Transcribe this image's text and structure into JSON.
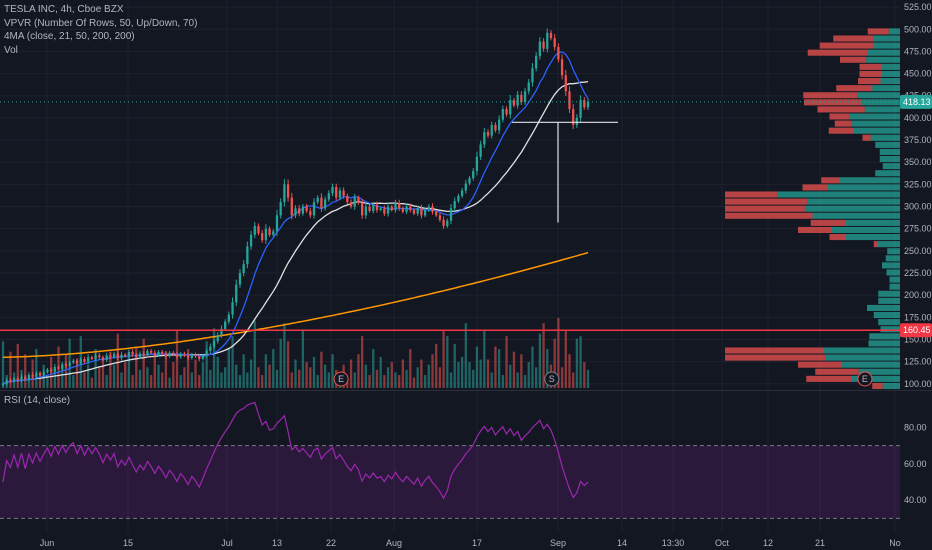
{
  "legend": {
    "symbol": "TESLA INC, 4h, Cboe BZX",
    "vpvr": "VPVR (Number Of Rows, 50, Up/Down, 70)",
    "ma": "4MA (close, 21, 50, 200, 200)",
    "vol": "Vol",
    "rsi": "RSI (14, close)"
  },
  "colors": {
    "background": "#131722",
    "up": "#26a69a",
    "down": "#ef5350",
    "ma21": "#2962ff",
    "ma50": "#e0e0e0",
    "ma200": "#ff9800",
    "rsi": "#9c27b0",
    "hline": "#f23645",
    "last_price": "#26a69a"
  },
  "chart_data": {
    "type": "candlestick",
    "symbol": "TESLA INC",
    "interval": "4h",
    "exchange": "Cboe BZX",
    "price_axis": {
      "ylim": [
        93,
        533
      ],
      "ticks": [
        525,
        500,
        475,
        450,
        425,
        400,
        375,
        350,
        325,
        300,
        275,
        250,
        225,
        200,
        175,
        150,
        125,
        100
      ]
    },
    "time_axis": {
      "labels": [
        "Jun",
        "15",
        "Jul",
        "13",
        "22",
        "Aug",
        "17",
        "Sep",
        "14",
        "13:30",
        "Oct",
        "12",
        "21",
        "No"
      ]
    },
    "last_price": 418.13,
    "horizontal_line": 160.45,
    "series_close": [
      100,
      104,
      103,
      106,
      104,
      108,
      105,
      110,
      108,
      112,
      110,
      113,
      116,
      114,
      119,
      117,
      122,
      120,
      124,
      126,
      123,
      128,
      125,
      130,
      128,
      132,
      130,
      127,
      132,
      130,
      134,
      129,
      133,
      131,
      136,
      133,
      130,
      134,
      132,
      137,
      135,
      132,
      136,
      134,
      131,
      135,
      133,
      130,
      134,
      132,
      129,
      133,
      131,
      128,
      132,
      137,
      142,
      148,
      155,
      162,
      170,
      178,
      192,
      212,
      225,
      235,
      255,
      268,
      278,
      270,
      262,
      275,
      268,
      272,
      290,
      305,
      325,
      310,
      290,
      298,
      292,
      300,
      295,
      290,
      305,
      310,
      298,
      308,
      315,
      322,
      310,
      318,
      312,
      305,
      300,
      310,
      304,
      290,
      300,
      295,
      302,
      296,
      298,
      292,
      300,
      296,
      304,
      298,
      294,
      300,
      296,
      292,
      298,
      290,
      296,
      300,
      294,
      290,
      285,
      278,
      284,
      298,
      306,
      312,
      318,
      326,
      332,
      340,
      356,
      370,
      384,
      380,
      392,
      386,
      398,
      410,
      404,
      420,
      414,
      426,
      418,
      430,
      440,
      456,
      470,
      486,
      478,
      496,
      490,
      480,
      466,
      448,
      430,
      410,
      392,
      400,
      420,
      412,
      418.13
    ],
    "series_volume": [
      1.8,
      0.5,
      1.4,
      0.6,
      1.7,
      0.7,
      1.3,
      0.4,
      1.1,
      1.5,
      0.6,
      0.9,
      0.5,
      1.2,
      0.7,
      1.6,
      0.8,
      1.3,
      1.9,
      0.5,
      1.1,
      2.0,
      0.6,
      0.9,
      0.4,
      1.5,
      0.8,
      1.1,
      0.5,
      1.4,
      0.9,
      2.1,
      0.6,
      1.0,
      1.3,
      0.5,
      1.6,
      0.7,
      1.9,
      0.8,
      0.5,
      1.2,
      0.9,
      0.6,
      1.4,
      0.4,
      1.0,
      2.2,
      0.5,
      0.8,
      1.5,
      0.6,
      1.1,
      0.5,
      1.0,
      1.8,
      0.7,
      2.3,
      1.2,
      0.6,
      0.8,
      1.5,
      2.0,
      0.9,
      0.5,
      1.3,
      0.6,
      1.1,
      2.6,
      0.8,
      0.5,
      1.3,
      0.9,
      1.5,
      0.7,
      1.9,
      2.5,
      1.8,
      0.6,
      1.1,
      0.7,
      2.2,
      1.0,
      0.8,
      1.2,
      0.5,
      1.4,
      0.9,
      0.6,
      1.3,
      0.7,
      0.5,
      0.9,
      0.4,
      1.1,
      0.6,
      1.3,
      2.0,
      0.9,
      0.5,
      1.5,
      0.7,
      1.2,
      0.5,
      0.8,
      1.0,
      0.6,
      0.5,
      1.1,
      0.7,
      1.5,
      0.4,
      0.8,
      1.1,
      0.5,
      0.9,
      1.3,
      1.7,
      0.8,
      2.2,
      2.0,
      0.6,
      1.7,
      1.0,
      1.2,
      2.5,
      1.0,
      0.7,
      1.6,
      1.1,
      2.2,
      1.1,
      0.6,
      1.6,
      1.5,
      0.5,
      2.0,
      0.9,
      1.4,
      0.6,
      1.3,
      0.5,
      1.0,
      1.6,
      0.8,
      2.1,
      2.5,
      1.5,
      0.9,
      1.9,
      2.7,
      0.8,
      2.2,
      1.3,
      0.6,
      1.9,
      2.0,
      1.0,
      0.7
    ],
    "rsi": {
      "ylim": [
        22,
        100
      ],
      "ticks": [
        80,
        60,
        40
      ],
      "upper_band": 70,
      "lower_band": 30
    },
    "event_markers": [
      {
        "label": "E",
        "position": 0.366
      },
      {
        "label": "S",
        "position": 0.592
      },
      {
        "label": "E",
        "position": 0.928
      }
    ]
  }
}
